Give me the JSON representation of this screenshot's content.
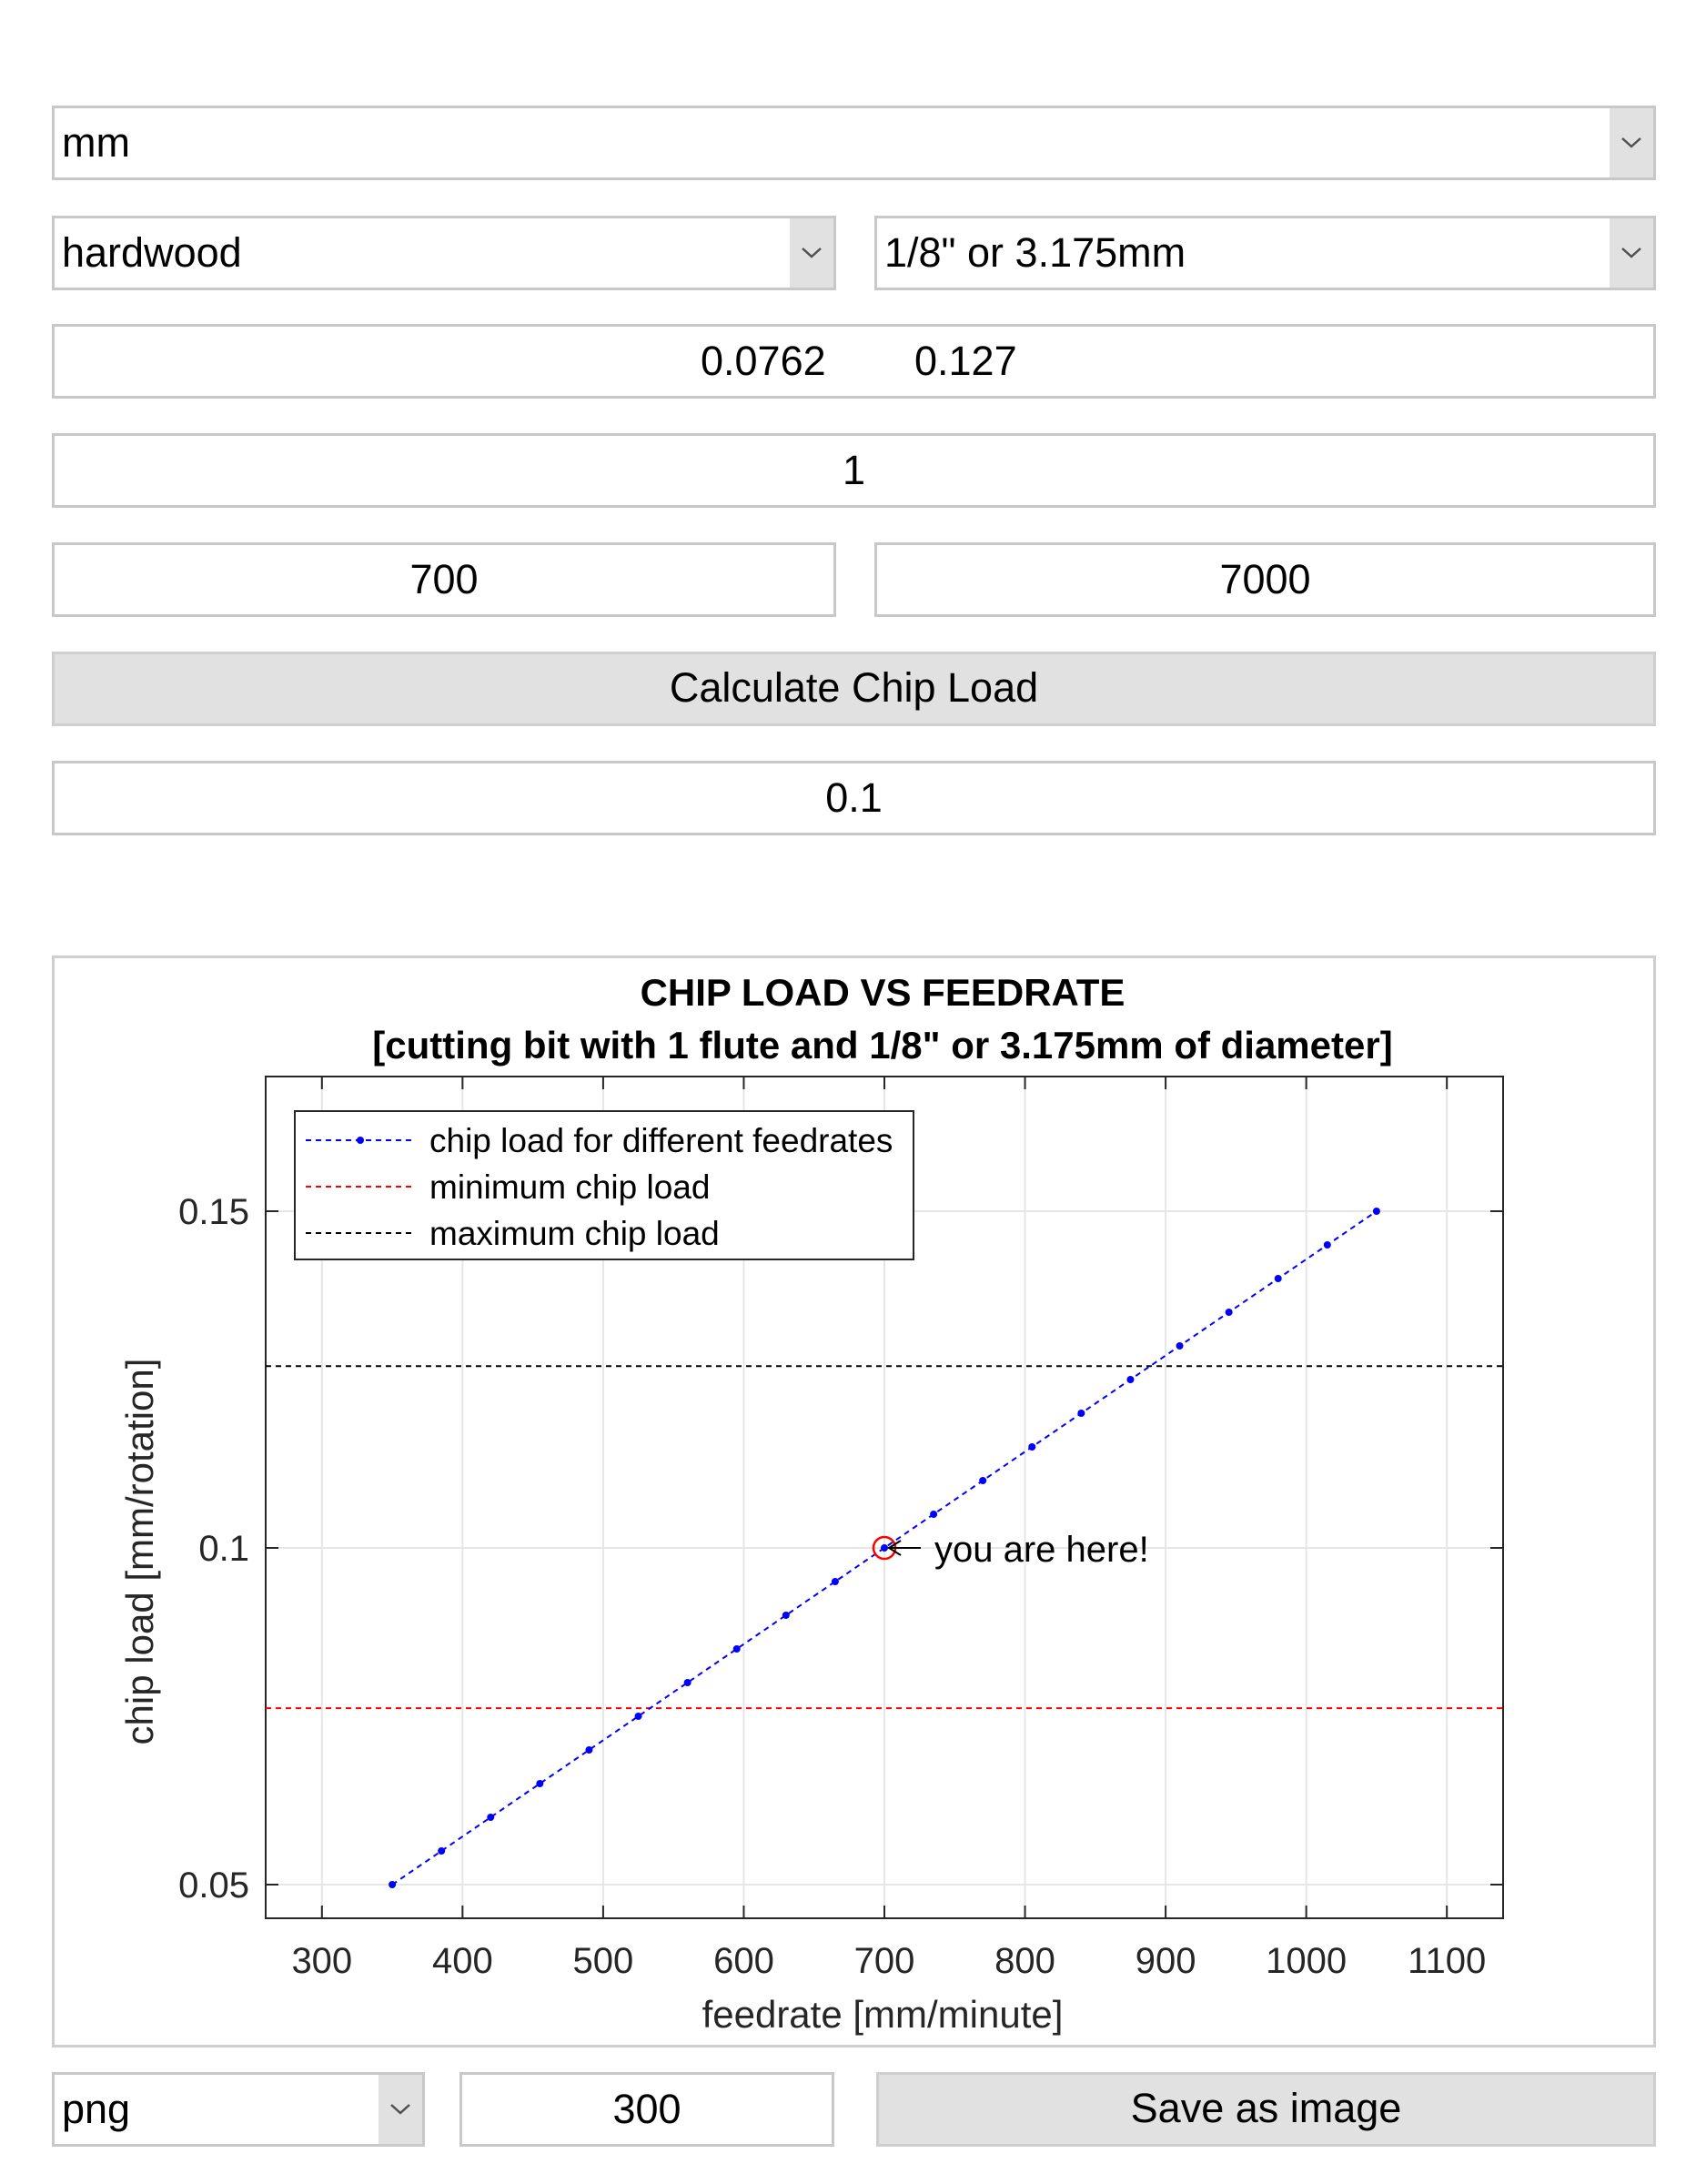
{
  "units_select": {
    "value": "mm"
  },
  "material_select": {
    "value": "hardwood"
  },
  "bit_select": {
    "value": "1/8\" or 3.175mm"
  },
  "chip_range": {
    "min": "0.0762",
    "max": "0.127"
  },
  "flutes": {
    "value": "1"
  },
  "feedrate": {
    "value": "700"
  },
  "rpm": {
    "value": "7000"
  },
  "calculate_button": {
    "label": "Calculate Chip Load"
  },
  "result": {
    "value": "0.1"
  },
  "export": {
    "format": "png",
    "dpi": "300",
    "save_label": "Save as image"
  },
  "icons": {
    "dropdown": "chevron-down-icon"
  },
  "colors": {
    "series": "#0000ff",
    "min_line": "#ff0000",
    "max_line": "#000000",
    "marker": "#ff0000"
  },
  "chart_data": {
    "type": "line",
    "title": "CHIP LOAD VS FEEDRATE",
    "subtitle": "[cutting bit with 1 flute and 1/8\" or 3.175mm of diameter]",
    "xlabel": "feedrate [mm/minute]",
    "ylabel": "chip load [mm/rotation]",
    "xlim": [
      260,
      1140
    ],
    "ylim": [
      0.045,
      0.17
    ],
    "xticks": [
      300,
      400,
      500,
      600,
      700,
      800,
      900,
      1000,
      1100
    ],
    "yticks": [
      0.05,
      0.1,
      0.15
    ],
    "ytick_labels": [
      "0.05",
      "0.1",
      "0.15"
    ],
    "grid": true,
    "legend_position": "top-left",
    "series": [
      {
        "name": "chip load for different feedrates",
        "x": [
          350,
          385,
          420,
          455,
          490,
          525,
          560,
          595,
          630,
          665,
          700,
          735,
          770,
          805,
          840,
          875,
          910,
          945,
          980,
          1015,
          1050
        ],
        "y": [
          0.05,
          0.055,
          0.06,
          0.065,
          0.07,
          0.075,
          0.08,
          0.085,
          0.09,
          0.095,
          0.1,
          0.105,
          0.11,
          0.115,
          0.12,
          0.125,
          0.13,
          0.135,
          0.14,
          0.145,
          0.15
        ],
        "color": "#0000ff",
        "style": "dashed-dot-markers"
      },
      {
        "name": "minimum chip load",
        "y_constant": 0.0762,
        "color": "#ff0000",
        "style": "dashed"
      },
      {
        "name": "maximum chip load",
        "y_constant": 0.127,
        "color": "#000000",
        "style": "dashed"
      }
    ],
    "annotation": {
      "text": "you are here!",
      "x": 700,
      "y": 0.1
    }
  }
}
